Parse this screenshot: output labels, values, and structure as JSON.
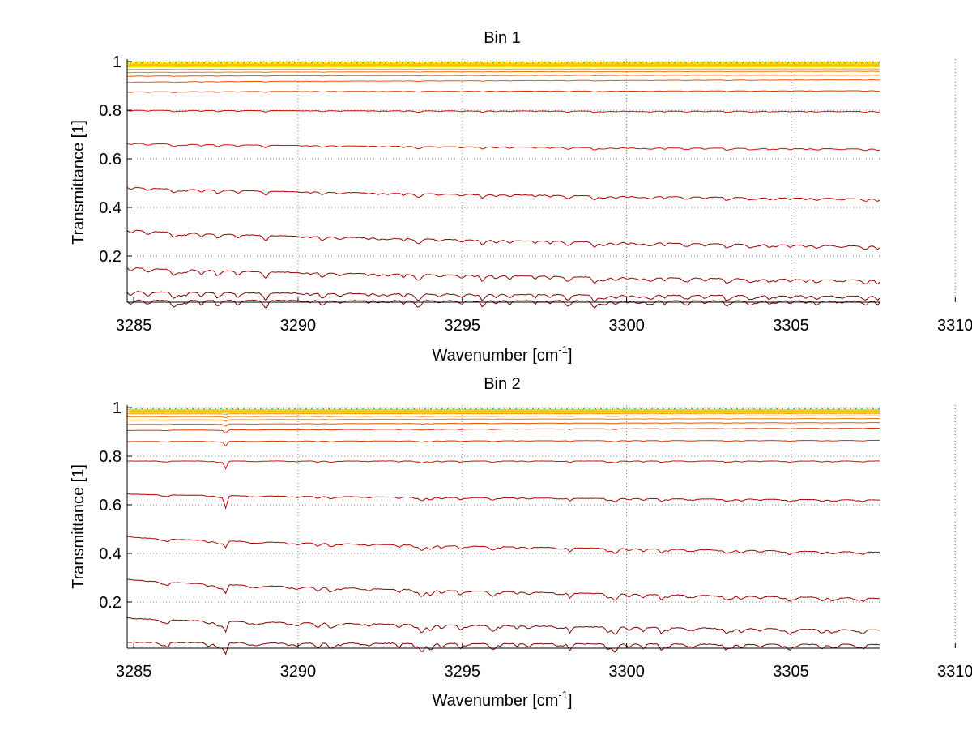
{
  "colors": {
    "background": "#ffffff",
    "axis": "#000000",
    "grid": "#7a7a7a",
    "palette": [
      "#800000",
      "#990000",
      "#b30000",
      "#cc1100",
      "#dd3300",
      "#ee5500",
      "#f57700",
      "#fa9900",
      "#ffbb00",
      "#ffd000",
      "#e8e000",
      "#7fd27f",
      "#33c1c1",
      "#1a80d0"
    ]
  },
  "chart_data": [
    {
      "type": "line",
      "title": "Bin 1",
      "xlabel": "Wavenumber [cm",
      "xlabel_sup": "-1",
      "xlabel_suffix": "]",
      "ylabel": "Transmittance [1]",
      "xlim": [
        3284.8,
        3307.7
      ],
      "ylim": [
        0.01,
        1.01
      ],
      "grid": true,
      "xticks": [
        3285,
        3290,
        3295,
        3300,
        3305,
        3310
      ],
      "xtick_labels": [
        "3285",
        "3290",
        "3295",
        "3300",
        "3305",
        "3310"
      ],
      "yticks": [
        0.2,
        0.4,
        0.6,
        0.8,
        1
      ],
      "ytick_labels": [
        "0.2",
        "0.4",
        "0.6",
        "0.8",
        "1"
      ],
      "series_levels": [
        {
          "y_start": 0.018,
          "y_end": 0.015
        },
        {
          "y_start": 0.055,
          "y_end": 0.035
        },
        {
          "y_start": 0.155,
          "y_end": 0.1
        },
        {
          "y_start": 0.31,
          "y_end": 0.24
        },
        {
          "y_start": 0.485,
          "y_end": 0.435
        },
        {
          "y_start": 0.665,
          "y_end": 0.64
        },
        {
          "y_start": 0.8,
          "y_end": 0.795
        },
        {
          "y_start": 0.875,
          "y_end": 0.88
        },
        {
          "y_start": 0.915,
          "y_end": 0.925
        },
        {
          "y_start": 0.94,
          "y_end": 0.945
        },
        {
          "y_start": 0.955,
          "y_end": 0.96
        },
        {
          "y_start": 0.968,
          "y_end": 0.97
        },
        {
          "y_start": 0.978,
          "y_end": 0.98
        },
        {
          "y_start": 0.986,
          "y_end": 0.988
        },
        {
          "y_start": 0.992,
          "y_end": 0.994
        },
        {
          "y_start": 0.998,
          "y_end": 0.998
        }
      ],
      "features": []
    },
    {
      "type": "line",
      "title": "Bin 2",
      "xlabel": "Wavenumber [cm",
      "xlabel_sup": "-1",
      "xlabel_suffix": "]",
      "ylabel": "Transmittance [1]",
      "xlim": [
        3284.8,
        3307.7
      ],
      "ylim": [
        0.01,
        1.01
      ],
      "grid": true,
      "xticks": [
        3285,
        3290,
        3295,
        3300,
        3305,
        3310
      ],
      "xtick_labels": [
        "3285",
        "3290",
        "3295",
        "3300",
        "3305",
        "3310"
      ],
      "yticks": [
        0.2,
        0.4,
        0.6,
        0.8,
        1
      ],
      "ytick_labels": [
        "0.2",
        "0.4",
        "0.6",
        "0.8",
        "1"
      ],
      "series_levels": [
        {
          "y_start": 0.035,
          "y_end": 0.025
        },
        {
          "y_start": 0.135,
          "y_end": 0.085
        },
        {
          "y_start": 0.295,
          "y_end": 0.215
        },
        {
          "y_start": 0.47,
          "y_end": 0.405
        },
        {
          "y_start": 0.645,
          "y_end": 0.62
        },
        {
          "y_start": 0.78,
          "y_end": 0.78
        },
        {
          "y_start": 0.86,
          "y_end": 0.865
        },
        {
          "y_start": 0.905,
          "y_end": 0.915
        },
        {
          "y_start": 0.93,
          "y_end": 0.938
        },
        {
          "y_start": 0.948,
          "y_end": 0.955
        },
        {
          "y_start": 0.962,
          "y_end": 0.966
        },
        {
          "y_start": 0.974,
          "y_end": 0.976
        },
        {
          "y_start": 0.984,
          "y_end": 0.985
        },
        {
          "y_start": 0.992,
          "y_end": 0.992
        },
        {
          "y_start": 0.998,
          "y_end": 0.998
        }
      ],
      "features": [
        {
          "x": 3287.8,
          "depth": 0.06
        }
      ]
    }
  ]
}
